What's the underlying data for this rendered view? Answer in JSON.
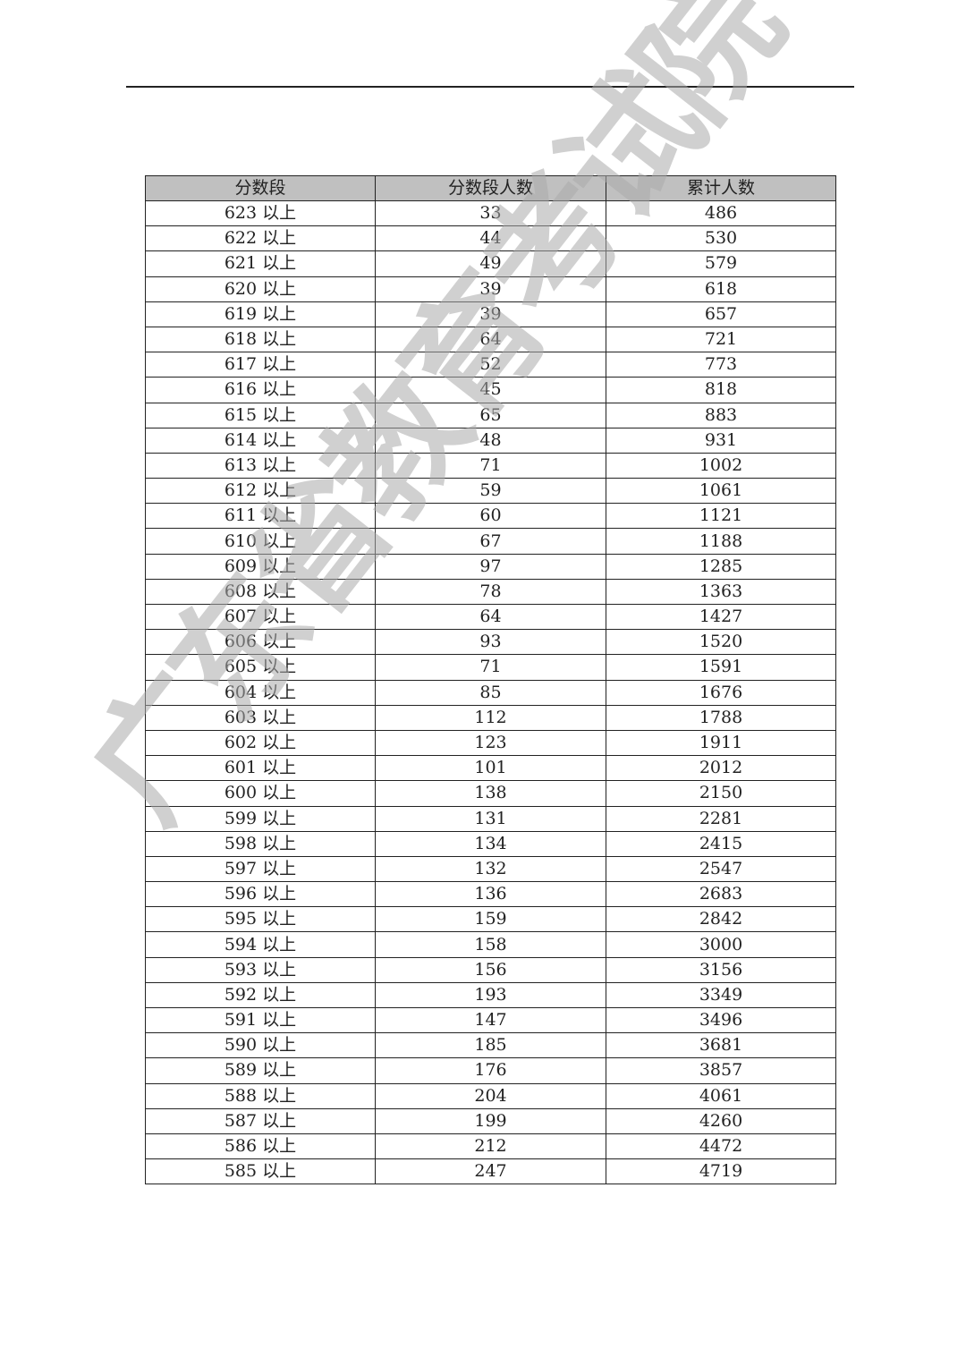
{
  "watermark": "广东省教育考试院",
  "table": {
    "headers": [
      "分数段",
      "分数段人数",
      "累计人数"
    ],
    "header_bg": "#c0c0c0",
    "rows": [
      [
        "623 以上",
        "33",
        "486"
      ],
      [
        "622 以上",
        "44",
        "530"
      ],
      [
        "621 以上",
        "49",
        "579"
      ],
      [
        "620 以上",
        "39",
        "618"
      ],
      [
        "619 以上",
        "39",
        "657"
      ],
      [
        "618 以上",
        "64",
        "721"
      ],
      [
        "617 以上",
        "52",
        "773"
      ],
      [
        "616 以上",
        "45",
        "818"
      ],
      [
        "615 以上",
        "65",
        "883"
      ],
      [
        "614 以上",
        "48",
        "931"
      ],
      [
        "613 以上",
        "71",
        "1002"
      ],
      [
        "612 以上",
        "59",
        "1061"
      ],
      [
        "611 以上",
        "60",
        "1121"
      ],
      [
        "610 以上",
        "67",
        "1188"
      ],
      [
        "609 以上",
        "97",
        "1285"
      ],
      [
        "608 以上",
        "78",
        "1363"
      ],
      [
        "607 以上",
        "64",
        "1427"
      ],
      [
        "606 以上",
        "93",
        "1520"
      ],
      [
        "605 以上",
        "71",
        "1591"
      ],
      [
        "604 以上",
        "85",
        "1676"
      ],
      [
        "603 以上",
        "112",
        "1788"
      ],
      [
        "602 以上",
        "123",
        "1911"
      ],
      [
        "601 以上",
        "101",
        "2012"
      ],
      [
        "600 以上",
        "138",
        "2150"
      ],
      [
        "599 以上",
        "131",
        "2281"
      ],
      [
        "598 以上",
        "134",
        "2415"
      ],
      [
        "597 以上",
        "132",
        "2547"
      ],
      [
        "596 以上",
        "136",
        "2683"
      ],
      [
        "595 以上",
        "159",
        "2842"
      ],
      [
        "594 以上",
        "158",
        "3000"
      ],
      [
        "593 以上",
        "156",
        "3156"
      ],
      [
        "592 以上",
        "193",
        "3349"
      ],
      [
        "591 以上",
        "147",
        "3496"
      ],
      [
        "590 以上",
        "185",
        "3681"
      ],
      [
        "589 以上",
        "176",
        "3857"
      ],
      [
        "588 以上",
        "204",
        "4061"
      ],
      [
        "587 以上",
        "199",
        "4260"
      ],
      [
        "586 以上",
        "212",
        "4472"
      ],
      [
        "585 以上",
        "247",
        "4719"
      ]
    ]
  }
}
